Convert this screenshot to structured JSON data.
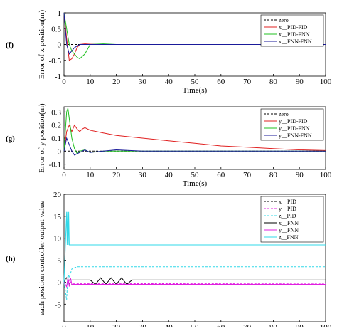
{
  "chart_data": [
    {
      "type": "line",
      "panel_label": "(f)",
      "xlabel": "Time(s)",
      "ylabel": "Error of x position(m)",
      "xlim": [
        0,
        100
      ],
      "xticks": [
        0,
        10,
        20,
        30,
        40,
        50,
        60,
        70,
        80,
        90,
        100
      ],
      "ylim": [
        -1,
        1
      ],
      "yticks": [
        -1,
        -0.5,
        0,
        0.5,
        1
      ],
      "legend": "upper right",
      "series": [
        {
          "name": "zero",
          "color": "#000000",
          "linestyle": "dashed",
          "x": [
            0,
            100
          ],
          "values": [
            0,
            0
          ]
        },
        {
          "name": "x__PID-PID",
          "color": "#e02020",
          "linestyle": "solid",
          "x": [
            0,
            1,
            2,
            3,
            4,
            5,
            6,
            8,
            10,
            15,
            20,
            100
          ],
          "values": [
            1,
            0.2,
            -0.5,
            -0.45,
            -0.3,
            -0.1,
            0,
            0.02,
            0.01,
            0,
            0,
            0
          ]
        },
        {
          "name": "x__PID-FNN",
          "color": "#20c020",
          "linestyle": "solid",
          "x": [
            0,
            1,
            2,
            3,
            4,
            5,
            6,
            8,
            10,
            15,
            20,
            100
          ],
          "values": [
            1,
            0.5,
            0,
            -0.2,
            -0.3,
            -0.4,
            -0.45,
            -0.3,
            0,
            0.02,
            0,
            0
          ]
        },
        {
          "name": "x__FNN-FNN",
          "color": "#1a1a9a",
          "linestyle": "solid",
          "x": [
            0,
            1,
            2,
            3,
            4,
            5,
            6,
            8,
            10,
            15,
            20,
            100
          ],
          "values": [
            1,
            0,
            -0.3,
            -0.2,
            -0.1,
            -0.05,
            0,
            0,
            0,
            0,
            0,
            0
          ]
        }
      ]
    },
    {
      "type": "line",
      "panel_label": "(g)",
      "xlabel": "Time(s)",
      "ylabel": "Error of y position(m)",
      "xlim": [
        0,
        100
      ],
      "xticks": [
        0,
        10,
        20,
        30,
        40,
        50,
        60,
        70,
        80,
        90,
        100
      ],
      "ylim": [
        -0.14,
        0.34
      ],
      "yticks": [
        -0.1,
        0,
        0.1,
        0.2,
        0.3
      ],
      "legend": "upper right",
      "series": [
        {
          "name": "zero",
          "color": "#000000",
          "linestyle": "dashed",
          "x": [
            0,
            100
          ],
          "values": [
            0,
            0
          ]
        },
        {
          "name": "y__PID-PID",
          "color": "#e02020",
          "linestyle": "solid",
          "x": [
            0,
            1,
            2,
            3,
            4,
            5,
            6,
            7,
            8,
            10,
            15,
            20,
            30,
            40,
            50,
            60,
            70,
            80,
            90,
            100
          ],
          "values": [
            0,
            0.15,
            0.2,
            0.15,
            0.2,
            0.17,
            0.15,
            0.17,
            0.18,
            0.16,
            0.14,
            0.12,
            0.1,
            0.08,
            0.06,
            0.04,
            0.03,
            0.02,
            0.01,
            0.005
          ]
        },
        {
          "name": "y__PID-FNN",
          "color": "#20c020",
          "linestyle": "solid",
          "x": [
            0,
            1,
            1.5,
            2,
            3,
            4,
            5,
            6,
            8,
            10,
            15,
            20,
            100
          ],
          "values": [
            0,
            0.3,
            0.33,
            0.25,
            0.1,
            0.02,
            -0.02,
            0,
            0.01,
            -0.01,
            0,
            0,
            0
          ]
        },
        {
          "name": "y__FNN-FNN",
          "color": "#1a1a9a",
          "linestyle": "solid",
          "x": [
            0,
            1,
            2,
            3,
            4,
            6,
            8,
            10,
            15,
            20,
            30,
            100
          ],
          "values": [
            0,
            0.1,
            0.05,
            0,
            -0.03,
            -0.01,
            0.01,
            -0.01,
            0,
            0.01,
            0,
            0
          ]
        }
      ]
    },
    {
      "type": "line",
      "panel_label": "(h)",
      "xlabel": "Time(s)",
      "ylabel": "each position controller output value",
      "xlim": [
        0,
        100
      ],
      "xticks": [
        0,
        10,
        20,
        30,
        40,
        50,
        60,
        70,
        80,
        90,
        100
      ],
      "ylim": [
        -9,
        20
      ],
      "yticks": [
        -5,
        0,
        5,
        10,
        15,
        20
      ],
      "legend": "upper right",
      "series": [
        {
          "name": "x__PID",
          "color": "#000000",
          "linestyle": "dashed",
          "x": [
            0,
            1,
            2,
            3,
            100
          ],
          "values": [
            0,
            1,
            -0.5,
            -0.5,
            -0.5
          ]
        },
        {
          "name": "y__PID",
          "color": "#e020e0",
          "linestyle": "dashed",
          "x": [
            0,
            1,
            2,
            3,
            100
          ],
          "values": [
            0,
            -1,
            0.5,
            -0.3,
            -0.4
          ]
        },
        {
          "name": "z__PID",
          "color": "#30d8e8",
          "linestyle": "dashed",
          "x": [
            0,
            1,
            1.5,
            2,
            3,
            5,
            100
          ],
          "values": [
            0,
            -4,
            2,
            1,
            3,
            3.5,
            3.5
          ]
        },
        {
          "name": "x__FNN",
          "color": "#000000",
          "linestyle": "solid",
          "x": [
            0,
            2,
            10,
            12,
            14,
            16,
            18,
            20,
            22,
            24,
            26,
            100
          ],
          "values": [
            0.5,
            0.5,
            0.5,
            -0.5,
            1,
            -0.5,
            1,
            -0.5,
            1,
            -0.5,
            0.5,
            0.5
          ]
        },
        {
          "name": "y__FNN",
          "color": "#e020e0",
          "linestyle": "solid",
          "x": [
            0,
            1,
            1.5,
            2,
            2.5,
            3,
            100
          ],
          "values": [
            0,
            -1,
            1,
            -1,
            1,
            -0.5,
            -0.5
          ]
        },
        {
          "name": "z__FNN",
          "color": "#30d8e8",
          "linestyle": "solid",
          "x": [
            0,
            1,
            1.2,
            1.4,
            1.6,
            1.8,
            2,
            100
          ],
          "values": [
            0,
            16,
            8.5,
            16,
            8.5,
            16,
            8.5,
            8.5
          ]
        }
      ]
    }
  ]
}
